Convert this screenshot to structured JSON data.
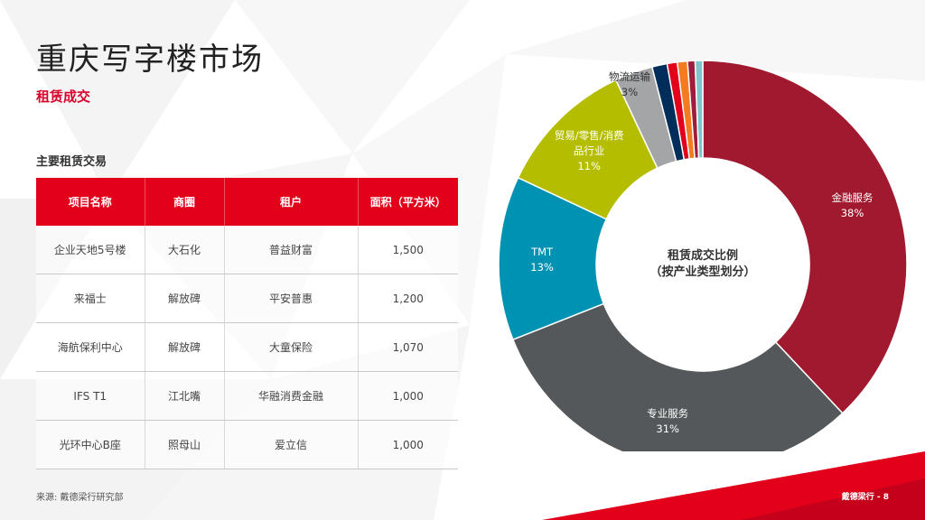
{
  "page": {
    "title": "重庆写字楼市场",
    "subtitle": "租赁成交",
    "section_title": "主要租赁交易",
    "source": "来源: 戴德梁行研究部",
    "footer": "戴德梁行 - 8"
  },
  "colors": {
    "accent_red": "#e2001a",
    "finance": "#a0192f",
    "professional": "#54585a",
    "tmt": "#0092b2",
    "retail": "#b5bd00",
    "logistics": "#a3a5a7",
    "navy": "#002d5a",
    "orange": "#f47b20"
  },
  "table": {
    "headers": [
      "项目名称",
      "商圈",
      "租户",
      "面积（平方米）"
    ],
    "rows": [
      [
        "企业天地5号楼",
        "大石化",
        "普益财富",
        "1,500"
      ],
      [
        "来福士",
        "解放碑",
        "平安普惠",
        "1,200"
      ],
      [
        "海航保利中心",
        "解放碑",
        "大童保险",
        "1,070"
      ],
      [
        "IFS T1",
        "江北嘴",
        "华融消费金融",
        "1,000"
      ],
      [
        "光环中心B座",
        "照母山",
        "爱立信",
        "1,000"
      ]
    ]
  },
  "chart_data": {
    "type": "pie",
    "style": "donut",
    "center_label": [
      "租赁成交比例",
      "（按产业类型划分）"
    ],
    "slices": [
      {
        "label": "金融服务",
        "value": 38,
        "value_label": "38%",
        "color": "#a0192f",
        "text_color": "#ffffff"
      },
      {
        "label": "专业服务",
        "value": 31,
        "value_label": "31%",
        "color": "#54585a",
        "text_color": "#ffffff"
      },
      {
        "label": "TMT",
        "value": 13,
        "value_label": "13%",
        "color": "#0092b2",
        "text_color": "#ffffff"
      },
      {
        "label": "贸易/零售/消费\n品行业",
        "value": 11,
        "value_label": "11%",
        "color": "#b5bd00",
        "text_color": "#ffffff"
      },
      {
        "label": "物流运输",
        "value": 3,
        "value_label": "3%",
        "color": "#a3a5a7",
        "text_color": "#333333"
      },
      {
        "label": "",
        "value": 1.2,
        "value_label": "",
        "color": "#002d5a"
      },
      {
        "label": "",
        "value": 0.8,
        "value_label": "",
        "color": "#e2001a"
      },
      {
        "label": "",
        "value": 0.8,
        "value_label": "",
        "color": "#f47b20"
      },
      {
        "label": "",
        "value": 0.6,
        "value_label": "",
        "color": "#9f1d3b"
      },
      {
        "label": "",
        "value": 0.6,
        "value_label": "",
        "color": "#7fc6cc"
      }
    ]
  }
}
